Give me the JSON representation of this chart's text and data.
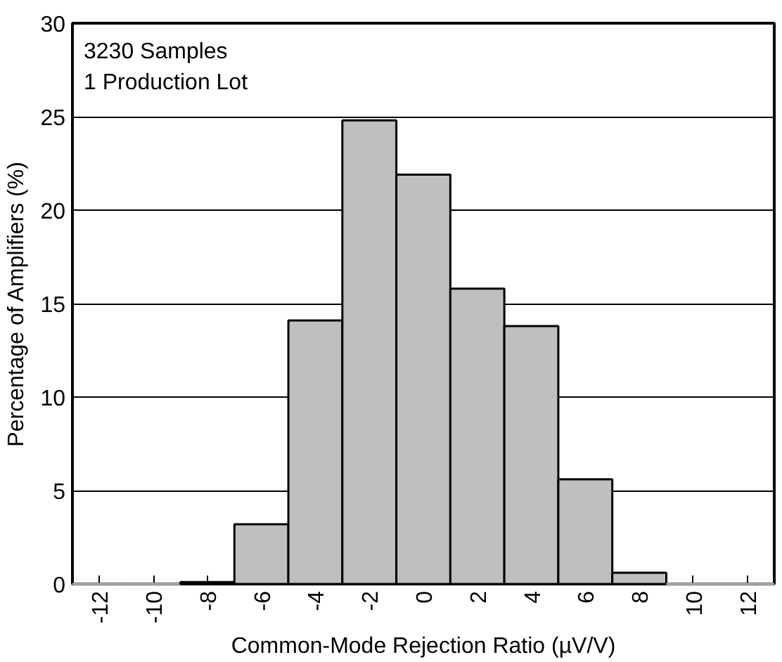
{
  "chart_data": {
    "type": "histogram",
    "xlabel": "Common-Mode Rejection Ratio (µV/V)",
    "ylabel": "Percentage of Amplifiers (%)",
    "bins": [
      -13,
      -11,
      -9,
      -7,
      -5,
      -3,
      -1,
      1,
      3,
      5,
      7,
      9,
      11,
      13
    ],
    "values": [
      0,
      0,
      0.1,
      3.2,
      14.1,
      24.8,
      21.9,
      15.8,
      13.8,
      5.6,
      0.6,
      0,
      0
    ],
    "color": "#bfbfbf",
    "xlim": [
      -13,
      13
    ],
    "xticks": [
      -12,
      -10,
      -8,
      -6,
      -4,
      -2,
      0,
      2,
      4,
      6,
      8,
      10,
      12
    ],
    "ylim": [
      0,
      30
    ],
    "yticks": [
      0,
      5,
      10,
      15,
      20,
      25,
      30
    ],
    "grid": "y",
    "annotations": [
      "3230 Samples",
      "1 Production Lot"
    ]
  }
}
